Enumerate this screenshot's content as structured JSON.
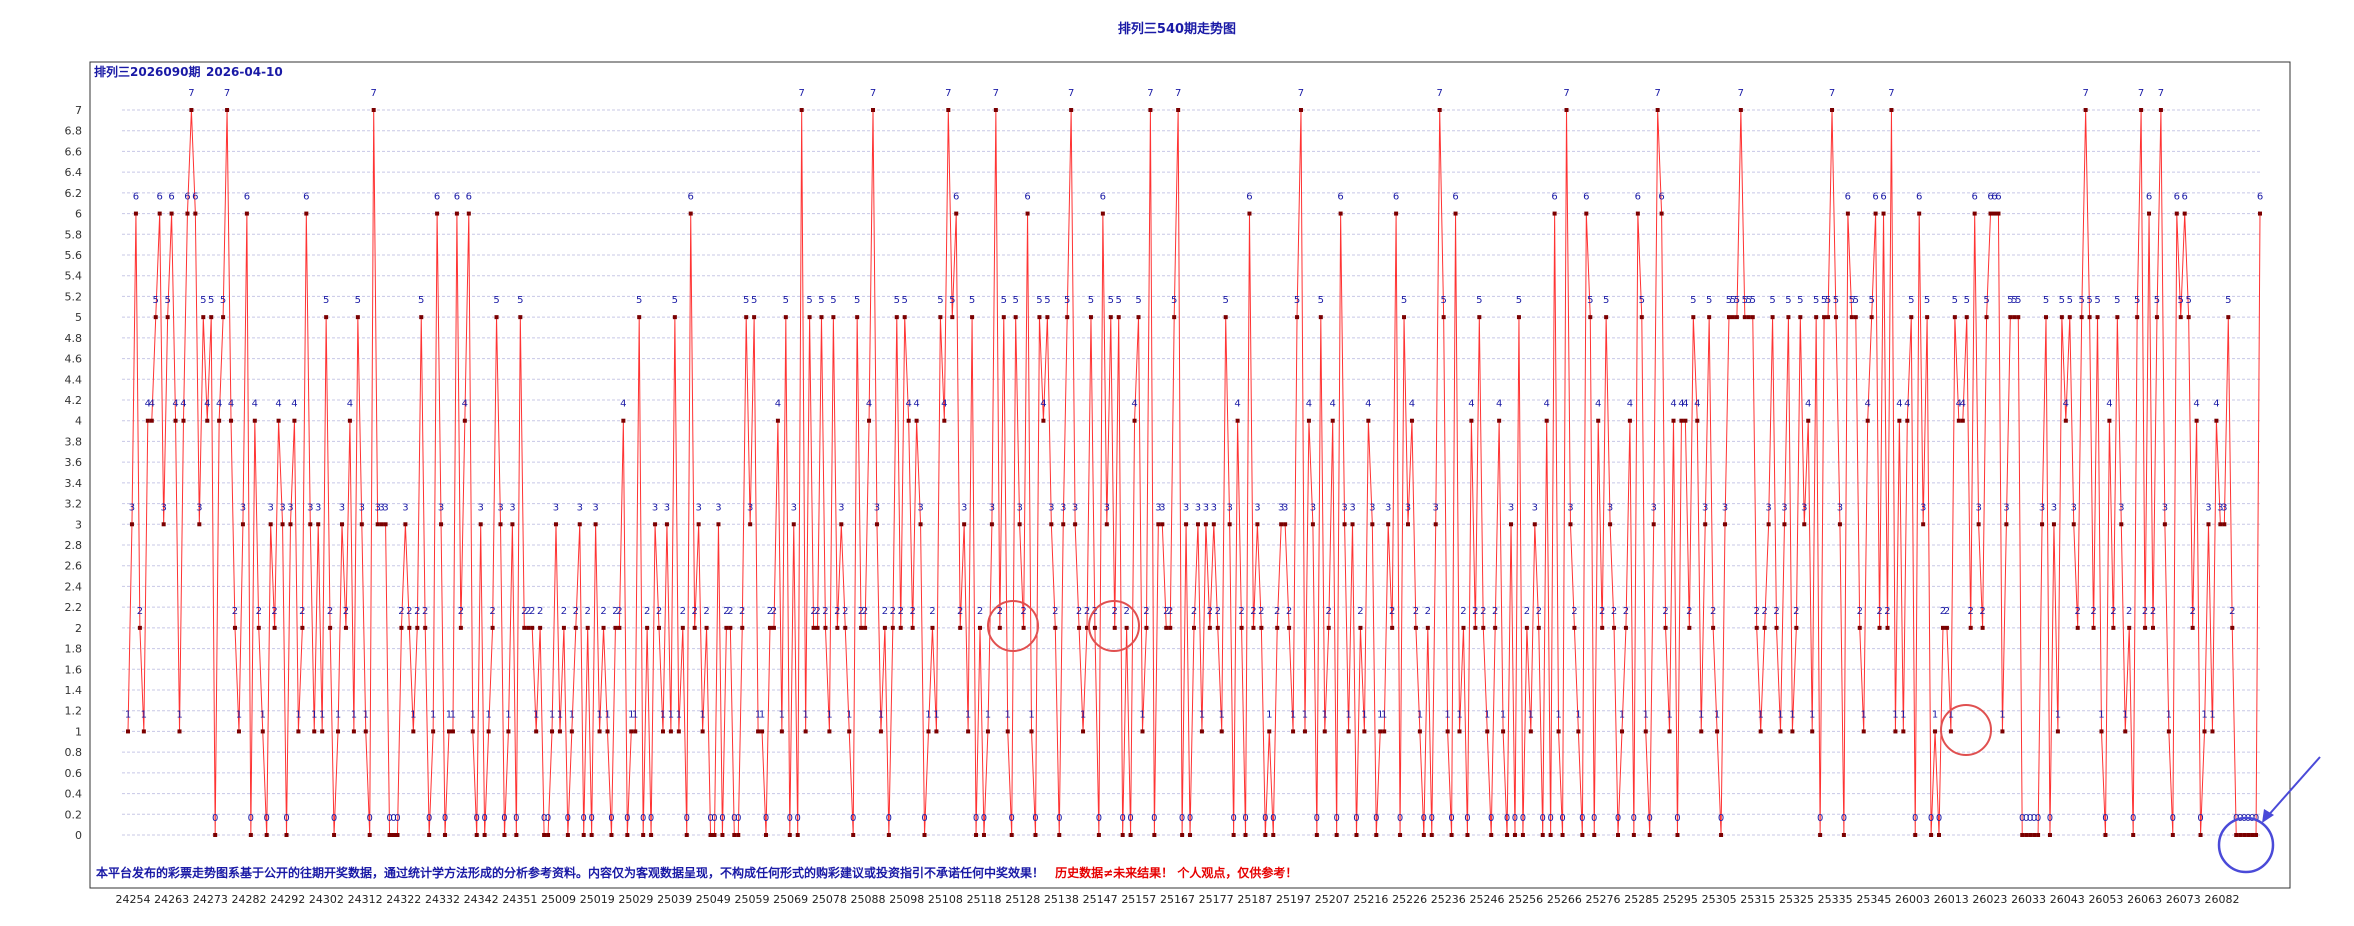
{
  "page": {
    "title": "排列三540期走势图"
  },
  "chart_data": {
    "type": "line",
    "title": "排列三540期走势图",
    "issue_label": "排列三2026090期",
    "date_label": "2026-04-10",
    "ylim": [
      0,
      7
    ],
    "y_ticks": [
      "0",
      "0.2",
      "0.4",
      "0.6",
      "0.8",
      "1",
      "1.2",
      "1.4",
      "1.6",
      "1.8",
      "2",
      "2.2",
      "2.4",
      "2.6",
      "2.8",
      "3",
      "3.2",
      "3.4",
      "3.6",
      "3.8",
      "4",
      "4.2",
      "4.4",
      "4.6",
      "4.8",
      "5",
      "5.2",
      "5.4",
      "5.6",
      "5.8",
      "6",
      "6.2",
      "6.4",
      "6.6",
      "6.8",
      "7"
    ],
    "x_tick_labels": [
      "24254",
      "24263",
      "24273",
      "24282",
      "24292",
      "24302",
      "24312",
      "24322",
      "24332",
      "24342",
      "24351",
      "25009",
      "25019",
      "25029",
      "25039",
      "25049",
      "25059",
      "25069",
      "25078",
      "25088",
      "25098",
      "25108",
      "25118",
      "25128",
      "25138",
      "25147",
      "25157",
      "25167",
      "25177",
      "25187",
      "25197",
      "25207",
      "25216",
      "25226",
      "25236",
      "25246",
      "25256",
      "25266",
      "25276",
      "25285",
      "25295",
      "25305",
      "25315",
      "25325",
      "25335",
      "25345",
      "26003",
      "26013",
      "26023",
      "26033",
      "26043",
      "26053",
      "26063",
      "26073",
      "26082"
    ],
    "grid": "horizontal",
    "series": [
      {
        "values": [
          1,
          3,
          6,
          2,
          1,
          4,
          4,
          5,
          6,
          3,
          5,
          6,
          4,
          1,
          4,
          6,
          7,
          6,
          3,
          5,
          4,
          5,
          0,
          4,
          5,
          7,
          4,
          2,
          1,
          3,
          6,
          0,
          4,
          2,
          1,
          0,
          3,
          2,
          4,
          3,
          0,
          3,
          4,
          1,
          2,
          6,
          3,
          1,
          3,
          1,
          5,
          2,
          0,
          1,
          3,
          2,
          4,
          1,
          5,
          3,
          1,
          0,
          7,
          3,
          3,
          3,
          0,
          0,
          0,
          2,
          3,
          2,
          1,
          2,
          5,
          2,
          0,
          1,
          6,
          3,
          0,
          1,
          1,
          6,
          2,
          4,
          6,
          1,
          0,
          3,
          0,
          1,
          2,
          5,
          3,
          0,
          1,
          3,
          0,
          5,
          2,
          2,
          2,
          1,
          2,
          0,
          0,
          1,
          3,
          1,
          2,
          0,
          1,
          2,
          3,
          0,
          2,
          0,
          3,
          1,
          2,
          1,
          0,
          2,
          2,
          4,
          0,
          1,
          1,
          5,
          0,
          2,
          0,
          3,
          2,
          1,
          3,
          1,
          5,
          1,
          2,
          0,
          6,
          2,
          3,
          1,
          2,
          0,
          0,
          3,
          0,
          2,
          2,
          0,
          0,
          2,
          5,
          3,
          5,
          1,
          1,
          0,
          2,
          2,
          4,
          1,
          5,
          0,
          3,
          0,
          7,
          1,
          5,
          2,
          2,
          5,
          2,
          1,
          5,
          2,
          3,
          2,
          1,
          0,
          5,
          2,
          2,
          4,
          7,
          3,
          1,
          2,
          0,
          2,
          5,
          2,
          5,
          4,
          2,
          4,
          3,
          0,
          1,
          2,
          1,
          5,
          4,
          7,
          5,
          6,
          2,
          3,
          1,
          5,
          0,
          2,
          0,
          1,
          3,
          7,
          2,
          5,
          1,
          0,
          5,
          3,
          2,
          6,
          1,
          0,
          5,
          4,
          5,
          3,
          2,
          0,
          3,
          5,
          7,
          3,
          2,
          1,
          2,
          5,
          2,
          0,
          6,
          3,
          5,
          2,
          5,
          0,
          2,
          0,
          4,
          5,
          1,
          2,
          7,
          0,
          3,
          3,
          2,
          2,
          5,
          7,
          0,
          3,
          0,
          2,
          3,
          1,
          3,
          2,
          3,
          2,
          1,
          5,
          3,
          0,
          4,
          2,
          0,
          6,
          2,
          3,
          2,
          0,
          1,
          0,
          2,
          3,
          3,
          2,
          1,
          5,
          7,
          1,
          4,
          3,
          0,
          5,
          1,
          2,
          4,
          0,
          6,
          3,
          1,
          3,
          0,
          2,
          1,
          4,
          3,
          0,
          1,
          1,
          3,
          2,
          6,
          0,
          5,
          3,
          4,
          2,
          1,
          0,
          2,
          0,
          3,
          7,
          5,
          1,
          0,
          6,
          1,
          2,
          0,
          4,
          2,
          5,
          2,
          1,
          0,
          2,
          4,
          1,
          0,
          3,
          0,
          5,
          0,
          2,
          1,
          3,
          2,
          0,
          4,
          0,
          6,
          1,
          0,
          7,
          3,
          2,
          1,
          0,
          6,
          5,
          0,
          4,
          2,
          5,
          3,
          2,
          0,
          1,
          2,
          4,
          0,
          6,
          5,
          1,
          0,
          3,
          7,
          6,
          2,
          1,
          4,
          0,
          4,
          4,
          2,
          5,
          4,
          1,
          3,
          5,
          2,
          1,
          0,
          3,
          5,
          5,
          5,
          7,
          5,
          5,
          5,
          2,
          1,
          2,
          3,
          5,
          2,
          1,
          3,
          5,
          1,
          2,
          5,
          3,
          4,
          1,
          5,
          0,
          5,
          5,
          7,
          5,
          3,
          0,
          6,
          5,
          5,
          2,
          1,
          4,
          5,
          6,
          2,
          6,
          2,
          7,
          1,
          4,
          1,
          4,
          5,
          0,
          6,
          3,
          5,
          0,
          1,
          0,
          2,
          2,
          1,
          5,
          4,
          4,
          5,
          2,
          6,
          3,
          2,
          5,
          6,
          6,
          6,
          1,
          3,
          5,
          5,
          5,
          0,
          0,
          0,
          0,
          0,
          3,
          5,
          0,
          3,
          1,
          5,
          4,
          5,
          3,
          2,
          5,
          7,
          5,
          2,
          5,
          1,
          0,
          4,
          2,
          5,
          3,
          1,
          2,
          0,
          5,
          7,
          2,
          6,
          2,
          5,
          7,
          3,
          1,
          0,
          6,
          5,
          6,
          5,
          2,
          4,
          0,
          1,
          3,
          1,
          4,
          3,
          3,
          5,
          2,
          0,
          0,
          0,
          0,
          0,
          0,
          6
        ]
      }
    ],
    "annotations": [
      {
        "type": "circle",
        "near": "24128-25128 area, value 2"
      },
      {
        "type": "circle",
        "near": "25147 area, value 2"
      },
      {
        "type": "circle",
        "near": "26013-26023 area, value 1"
      },
      {
        "type": "circle",
        "near": "26082, value 0"
      }
    ]
  },
  "footer": {
    "note_blue": "本平台发布的彩票走势图系基于公开的往期开奖数据，通过统计学方法形成的分析参考资料。内容仅为客观数据呈现，不构成任何形式的购彩建议或投资指引不承诺任何中奖效果！",
    "note_red": "历史数据≠未来结果！ 个人观点，仅供参考！"
  },
  "colors": {
    "line": "#ff3333",
    "point": "#7a0000",
    "label": "#1a1aa6",
    "grid": "#c8c8e6",
    "circle_red": "#e05050",
    "circle_blue": "#4a4ad8"
  }
}
